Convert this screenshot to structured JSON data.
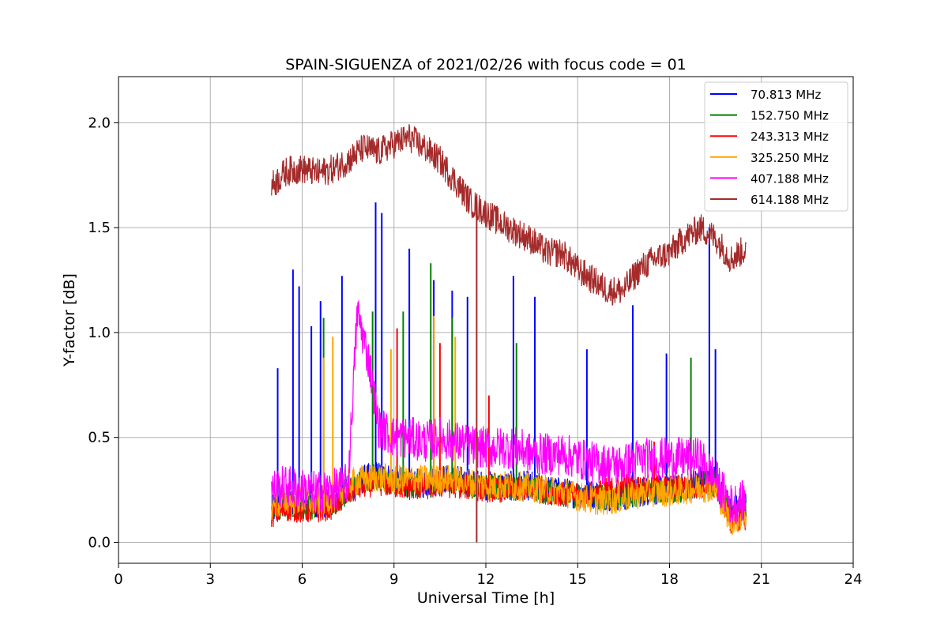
{
  "chart_data": {
    "type": "line",
    "title": "SPAIN-SIGUENZA of 2021/02/26 with focus code = 01",
    "xlabel": "Universal Time [h]",
    "ylabel": "Y-factor [dB]",
    "xlim": [
      0,
      24
    ],
    "ylim": [
      -0.1,
      2.22
    ],
    "xticks": [
      0,
      3,
      6,
      9,
      12,
      15,
      18,
      21,
      24
    ],
    "xtick_labels": [
      "0",
      "3",
      "6",
      "9",
      "12",
      "15",
      "18",
      "21",
      "24"
    ],
    "yticks": [
      0.0,
      0.5,
      1.0,
      1.5,
      2.0
    ],
    "ytick_labels": [
      "0.0",
      "0.5",
      "1.0",
      "1.5",
      "2.0"
    ],
    "grid": true,
    "legend_position": "top-right",
    "series": [
      {
        "name": " 70.813 MHz",
        "color": "#0000ff",
        "x": [
          5.0,
          5.5,
          6.0,
          6.5,
          7.0,
          7.5,
          8.0,
          8.5,
          9.0,
          9.5,
          10.0,
          10.5,
          11.0,
          11.5,
          12.0,
          12.5,
          13.0,
          13.5,
          14.0,
          14.5,
          15.0,
          15.5,
          16.0,
          16.5,
          17.0,
          17.5,
          18.0,
          18.5,
          19.0,
          19.5,
          20.0,
          20.5
        ],
        "y": [
          0.15,
          0.2,
          0.18,
          0.18,
          0.2,
          0.25,
          0.3,
          0.32,
          0.3,
          0.28,
          0.28,
          0.3,
          0.3,
          0.28,
          0.27,
          0.27,
          0.27,
          0.27,
          0.25,
          0.24,
          0.23,
          0.23,
          0.22,
          0.22,
          0.24,
          0.25,
          0.25,
          0.26,
          0.3,
          0.3,
          0.15,
          0.18
        ],
        "spikes": [
          [
            5.2,
            0.83
          ],
          [
            5.7,
            1.3
          ],
          [
            5.9,
            1.22
          ],
          [
            6.3,
            1.03
          ],
          [
            6.6,
            1.15
          ],
          [
            7.3,
            1.27
          ],
          [
            8.4,
            1.62
          ],
          [
            8.6,
            1.57
          ],
          [
            9.5,
            1.4
          ],
          [
            10.3,
            1.25
          ],
          [
            10.9,
            1.2
          ],
          [
            11.4,
            1.17
          ],
          [
            12.9,
            1.27
          ],
          [
            13.6,
            1.17
          ],
          [
            15.3,
            0.92
          ],
          [
            16.8,
            1.13
          ],
          [
            17.9,
            0.9
          ],
          [
            19.3,
            1.5
          ],
          [
            19.5,
            0.92
          ]
        ]
      },
      {
        "name": "152.750 MHz",
        "color": "#008000",
        "x": [
          5.0,
          5.5,
          6.0,
          6.5,
          7.0,
          7.5,
          8.0,
          8.5,
          9.0,
          9.5,
          10.0,
          10.5,
          11.0,
          11.5,
          12.0,
          12.5,
          13.0,
          13.5,
          14.0,
          14.5,
          15.0,
          15.5,
          16.0,
          16.5,
          17.0,
          17.5,
          18.0,
          18.5,
          19.0,
          19.5,
          20.0,
          20.5
        ],
        "y": [
          0.14,
          0.18,
          0.17,
          0.17,
          0.19,
          0.24,
          0.29,
          0.3,
          0.29,
          0.27,
          0.27,
          0.28,
          0.29,
          0.27,
          0.26,
          0.26,
          0.26,
          0.26,
          0.24,
          0.23,
          0.22,
          0.22,
          0.21,
          0.21,
          0.23,
          0.24,
          0.24,
          0.25,
          0.28,
          0.28,
          0.13,
          0.16
        ],
        "spikes": [
          [
            6.7,
            1.07
          ],
          [
            8.3,
            1.1
          ],
          [
            9.3,
            1.1
          ],
          [
            10.2,
            1.33
          ],
          [
            10.9,
            1.07
          ],
          [
            13.0,
            0.95
          ],
          [
            18.7,
            0.88
          ]
        ]
      },
      {
        "name": "243.313 MHz",
        "color": "#ff0000",
        "x": [
          5.0,
          5.5,
          6.0,
          6.5,
          7.0,
          7.5,
          8.0,
          8.5,
          9.0,
          9.5,
          10.0,
          10.5,
          11.0,
          11.5,
          12.0,
          12.5,
          13.0,
          13.5,
          14.0,
          14.5,
          15.0,
          15.5,
          16.0,
          16.5,
          17.0,
          17.5,
          18.0,
          18.5,
          19.0,
          19.5,
          20.0,
          20.5
        ],
        "y": [
          0.13,
          0.16,
          0.15,
          0.15,
          0.17,
          0.23,
          0.27,
          0.28,
          0.27,
          0.26,
          0.26,
          0.27,
          0.27,
          0.26,
          0.25,
          0.25,
          0.25,
          0.25,
          0.24,
          0.23,
          0.22,
          0.23,
          0.25,
          0.27,
          0.26,
          0.27,
          0.26,
          0.27,
          0.27,
          0.27,
          0.1,
          0.12
        ],
        "spikes": [
          [
            9.1,
            1.02
          ],
          [
            10.5,
            0.95
          ],
          [
            12.1,
            0.7
          ],
          [
            16.0,
            0.38
          ],
          [
            17.5,
            0.48
          ]
        ]
      },
      {
        "name": "325.250 MHz",
        "color": "#ffa500",
        "x": [
          5.0,
          5.5,
          6.0,
          6.5,
          7.0,
          7.5,
          8.0,
          8.5,
          9.0,
          9.5,
          10.0,
          10.5,
          11.0,
          11.5,
          12.0,
          12.5,
          13.0,
          13.5,
          14.0,
          14.5,
          15.0,
          15.5,
          16.0,
          16.5,
          17.0,
          17.5,
          18.0,
          18.5,
          19.0,
          19.5,
          20.0,
          20.5
        ],
        "y": [
          0.17,
          0.2,
          0.2,
          0.19,
          0.21,
          0.28,
          0.3,
          0.31,
          0.3,
          0.3,
          0.3,
          0.3,
          0.3,
          0.28,
          0.27,
          0.27,
          0.27,
          0.26,
          0.25,
          0.24,
          0.22,
          0.2,
          0.2,
          0.21,
          0.23,
          0.24,
          0.24,
          0.25,
          0.26,
          0.26,
          0.1,
          0.13
        ],
        "spikes": [
          [
            6.7,
            0.88
          ],
          [
            7.0,
            0.98
          ],
          [
            8.9,
            0.92
          ],
          [
            10.3,
            1.08
          ],
          [
            11.0,
            0.98
          ]
        ]
      },
      {
        "name": "407.188 MHz",
        "color": "#ff00ff",
        "x": [
          5.0,
          5.5,
          6.0,
          6.5,
          7.0,
          7.5,
          7.8,
          8.2,
          8.5,
          9.0,
          9.5,
          10.0,
          10.5,
          11.0,
          11.5,
          12.0,
          12.5,
          13.0,
          13.5,
          14.0,
          14.5,
          15.0,
          15.5,
          16.0,
          16.5,
          17.0,
          17.5,
          18.0,
          18.5,
          19.0,
          19.5,
          20.0,
          20.5
        ],
        "y": [
          0.25,
          0.27,
          0.25,
          0.24,
          0.25,
          0.28,
          1.1,
          0.85,
          0.55,
          0.5,
          0.5,
          0.48,
          0.5,
          0.48,
          0.46,
          0.45,
          0.45,
          0.45,
          0.42,
          0.42,
          0.42,
          0.4,
          0.38,
          0.37,
          0.37,
          0.4,
          0.4,
          0.4,
          0.4,
          0.4,
          0.3,
          0.18,
          0.2
        ]
      },
      {
        "name": "614.188 MHz",
        "color": "#a52a2a",
        "x": [
          5.0,
          5.5,
          6.0,
          6.5,
          7.0,
          7.5,
          8.0,
          8.5,
          9.0,
          9.5,
          10.0,
          10.5,
          11.0,
          11.5,
          12.0,
          12.5,
          13.0,
          13.5,
          14.0,
          14.5,
          15.0,
          15.5,
          16.0,
          16.5,
          17.0,
          17.5,
          18.0,
          18.5,
          19.0,
          19.5,
          20.0,
          20.5
        ],
        "y": [
          1.7,
          1.77,
          1.78,
          1.76,
          1.78,
          1.82,
          1.88,
          1.86,
          1.9,
          1.93,
          1.88,
          1.82,
          1.72,
          1.62,
          1.57,
          1.52,
          1.48,
          1.44,
          1.38,
          1.38,
          1.3,
          1.25,
          1.2,
          1.2,
          1.3,
          1.35,
          1.38,
          1.45,
          1.5,
          1.45,
          1.35,
          1.4
        ],
        "spikes": [
          [
            11.7,
            0.0
          ]
        ]
      }
    ]
  }
}
